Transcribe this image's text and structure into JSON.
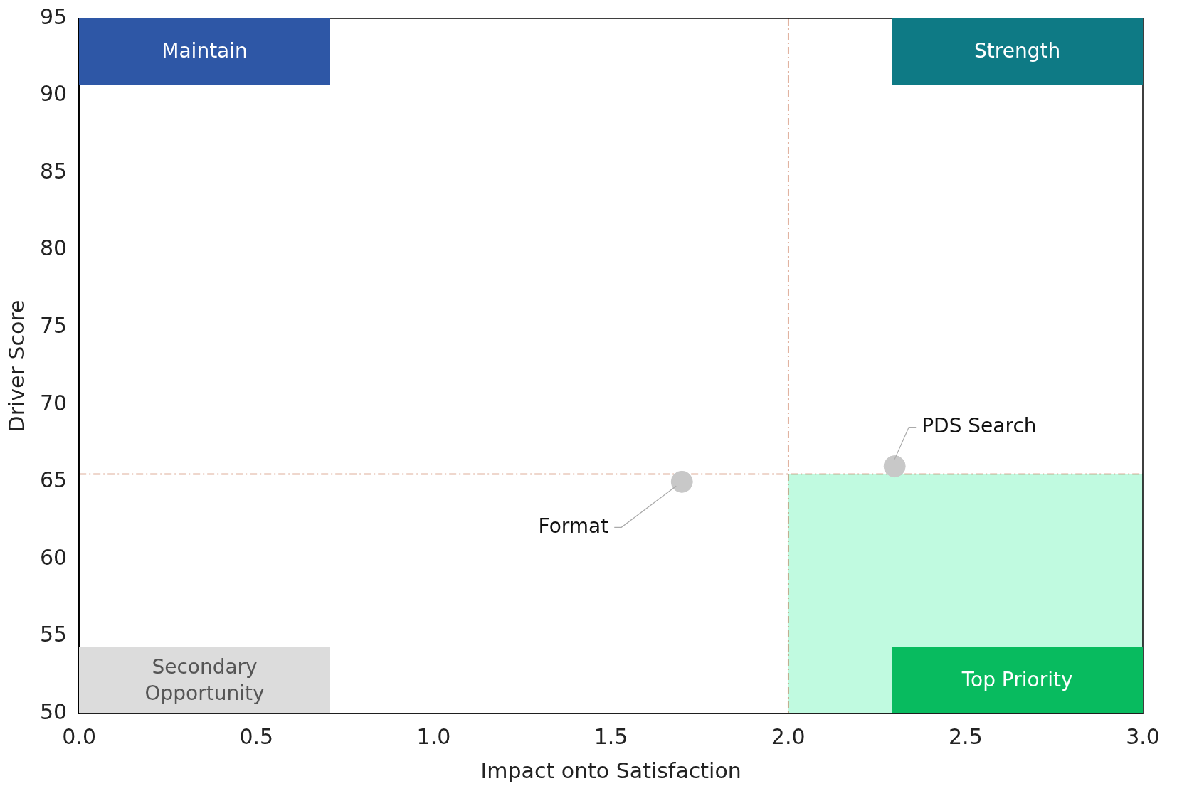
{
  "chart_data": {
    "type": "scatter",
    "xlabel": "Impact onto Satisfaction",
    "ylabel": "Driver Score",
    "x": [
      1.7,
      2.3
    ],
    "series": [
      {
        "color": "#c8c8c8",
        "values": [
          65,
          66
        ]
      }
    ],
    "marker": "circle",
    "grid": false,
    "legend": false,
    "xlim": [
      0,
      3
    ],
    "xticks": [
      {
        "value": 0,
        "label": "0.0"
      },
      0.5,
      {
        "value": 1,
        "label": "1.0"
      },
      1.5,
      {
        "value": 2,
        "label": "2.0"
      },
      2.5,
      {
        "value": 3,
        "label": "3.0"
      }
    ],
    "ylim": [
      50,
      95
    ],
    "yticks": [
      50,
      55,
      60,
      65,
      70,
      75,
      80,
      85,
      90,
      95
    ],
    "ref_lines": [
      {
        "axis": "x",
        "value": 2,
        "color": "#c0603a",
        "line_style": "dashdot"
      },
      {
        "axis": "y",
        "value": 65.5,
        "color": "#c0603a",
        "line_style": "dashdot"
      }
    ],
    "bands": [
      {
        "axis": "x",
        "from": 2,
        "to": 3,
        "color": "#c0fae0"
      }
    ],
    "annotations": [
      "Format",
      "PDS Search",
      "Maintain",
      "Strength",
      "Secondary Opportunity",
      "Top Priority"
    ]
  }
}
